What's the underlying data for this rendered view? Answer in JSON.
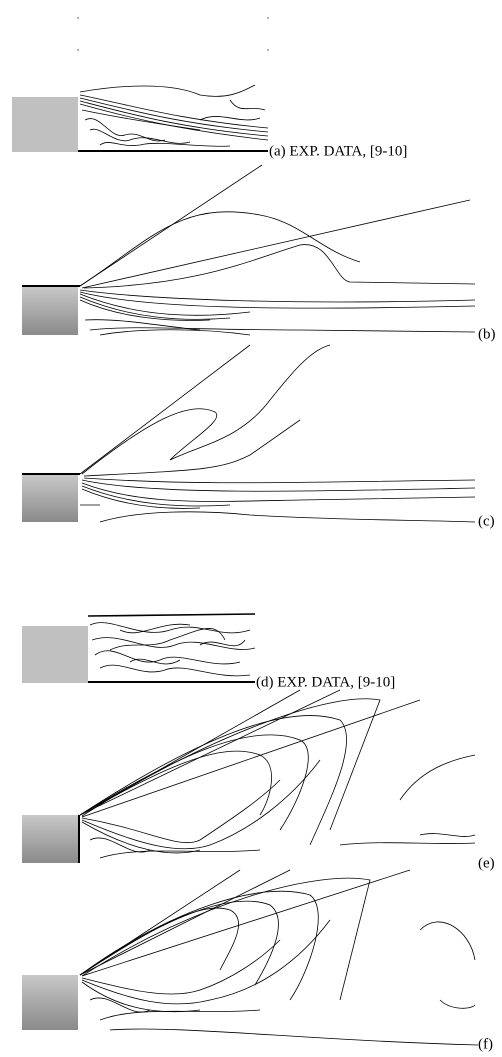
{
  "panels": [
    {
      "label": "(a) EXP. DATA, [9-10]"
    },
    {
      "label": "(b)"
    },
    {
      "label": "(c)"
    },
    {
      "label": "(d) EXP. DATA, [9-10]"
    },
    {
      "label": "(e)"
    },
    {
      "label": "(f)"
    }
  ]
}
